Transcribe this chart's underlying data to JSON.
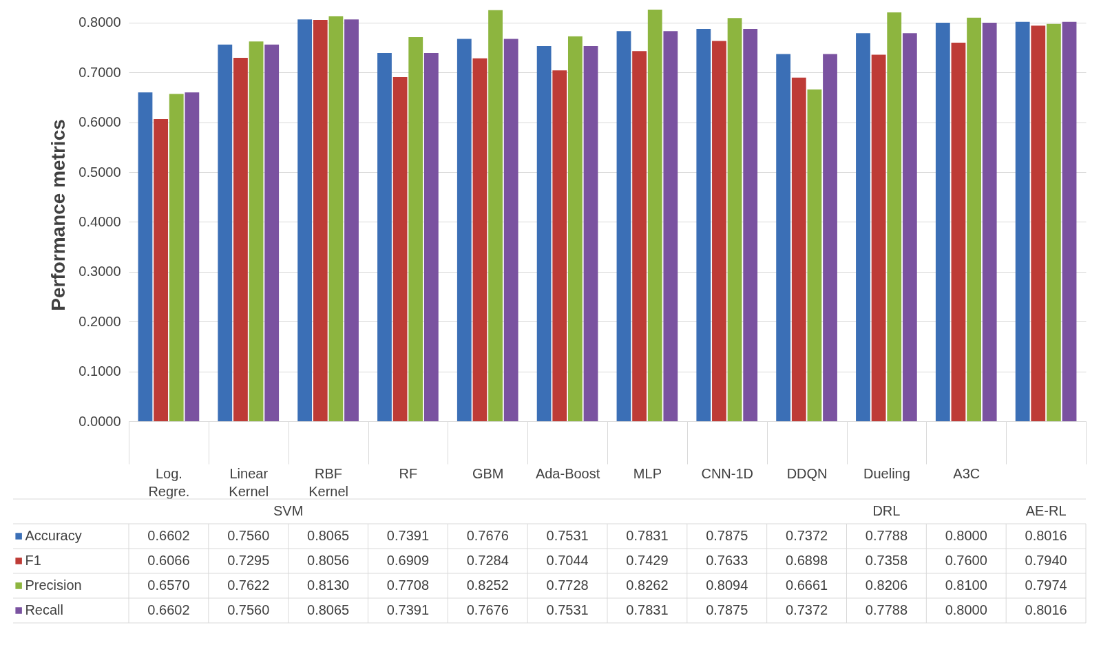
{
  "chart_data": {
    "type": "bar",
    "ylabel": "Performance metrics",
    "categories": [
      "Log. Regre.",
      "Linear Kernel",
      "RBF Kernel",
      "RF",
      "GBM",
      "Ada-Boost",
      "MLP",
      "CNN-1D",
      "DDQN",
      "Dueling",
      "A3C",
      null
    ],
    "series": [
      {
        "name": "Accuracy",
        "color": "#3b6fb6",
        "values": [
          0.6602,
          0.756,
          0.8065,
          0.7391,
          0.7676,
          0.7531,
          0.7831,
          0.7875,
          0.7372,
          0.7788,
          0.8,
          0.8016
        ],
        "value_labels": [
          "0.6602",
          "0.7560",
          "0.8065",
          "0.7391",
          "0.7676",
          "0.7531",
          "0.7831",
          "0.7875",
          "0.7372",
          "0.7788",
          "0.8000",
          "0.8016"
        ]
      },
      {
        "name": "F1",
        "color": "#be3b36",
        "values": [
          0.6066,
          0.7295,
          0.8056,
          0.6909,
          0.7284,
          0.7044,
          0.7429,
          0.7633,
          0.6898,
          0.7358,
          0.76,
          0.794
        ],
        "value_labels": [
          "0.6066",
          "0.7295",
          "0.8056",
          "0.6909",
          "0.7284",
          "0.7044",
          "0.7429",
          "0.7633",
          "0.6898",
          "0.7358",
          "0.7600",
          "0.7940"
        ]
      },
      {
        "name": "Precision",
        "color": "#8db53f",
        "values": [
          0.657,
          0.7622,
          0.813,
          0.7708,
          0.8252,
          0.7728,
          0.8262,
          0.8094,
          0.6661,
          0.8206,
          0.81,
          0.7974
        ],
        "value_labels": [
          "0.6570",
          "0.7622",
          "0.8130",
          "0.7708",
          "0.8252",
          "0.7728",
          "0.8262",
          "0.8094",
          "0.6661",
          "0.8206",
          "0.8100",
          "0.7974"
        ]
      },
      {
        "name": "Recall",
        "color": "#7a52a0",
        "values": [
          0.6602,
          0.756,
          0.8065,
          0.7391,
          0.7676,
          0.7531,
          0.7831,
          0.7875,
          0.7372,
          0.7788,
          0.8,
          0.8016
        ],
        "value_labels": [
          "0.6602",
          "0.7560",
          "0.8065",
          "0.7391",
          "0.7676",
          "0.7531",
          "0.7831",
          "0.7875",
          "0.7372",
          "0.7788",
          "0.8000",
          "0.8016"
        ]
      }
    ],
    "annotations": [
      "SVM",
      "DRL",
      "AE-RL"
    ],
    "ylim": [
      0,
      0.829
    ],
    "yticks": [
      {
        "value": 0,
        "label": "0.0000"
      },
      {
        "value": 0.1,
        "label": "0.1000"
      },
      {
        "value": 0.2,
        "label": "0.2000"
      },
      {
        "value": 0.3,
        "label": "0.3000"
      },
      {
        "value": 0.4,
        "label": "0.4000"
      },
      {
        "value": 0.5,
        "label": "0.5000"
      },
      {
        "value": 0.6,
        "label": "0.6000"
      },
      {
        "value": 0.7,
        "label": "0.7000"
      },
      {
        "value": 0.8,
        "label": "0.8000"
      }
    ],
    "grid": "y",
    "legend": "bottom left"
  }
}
